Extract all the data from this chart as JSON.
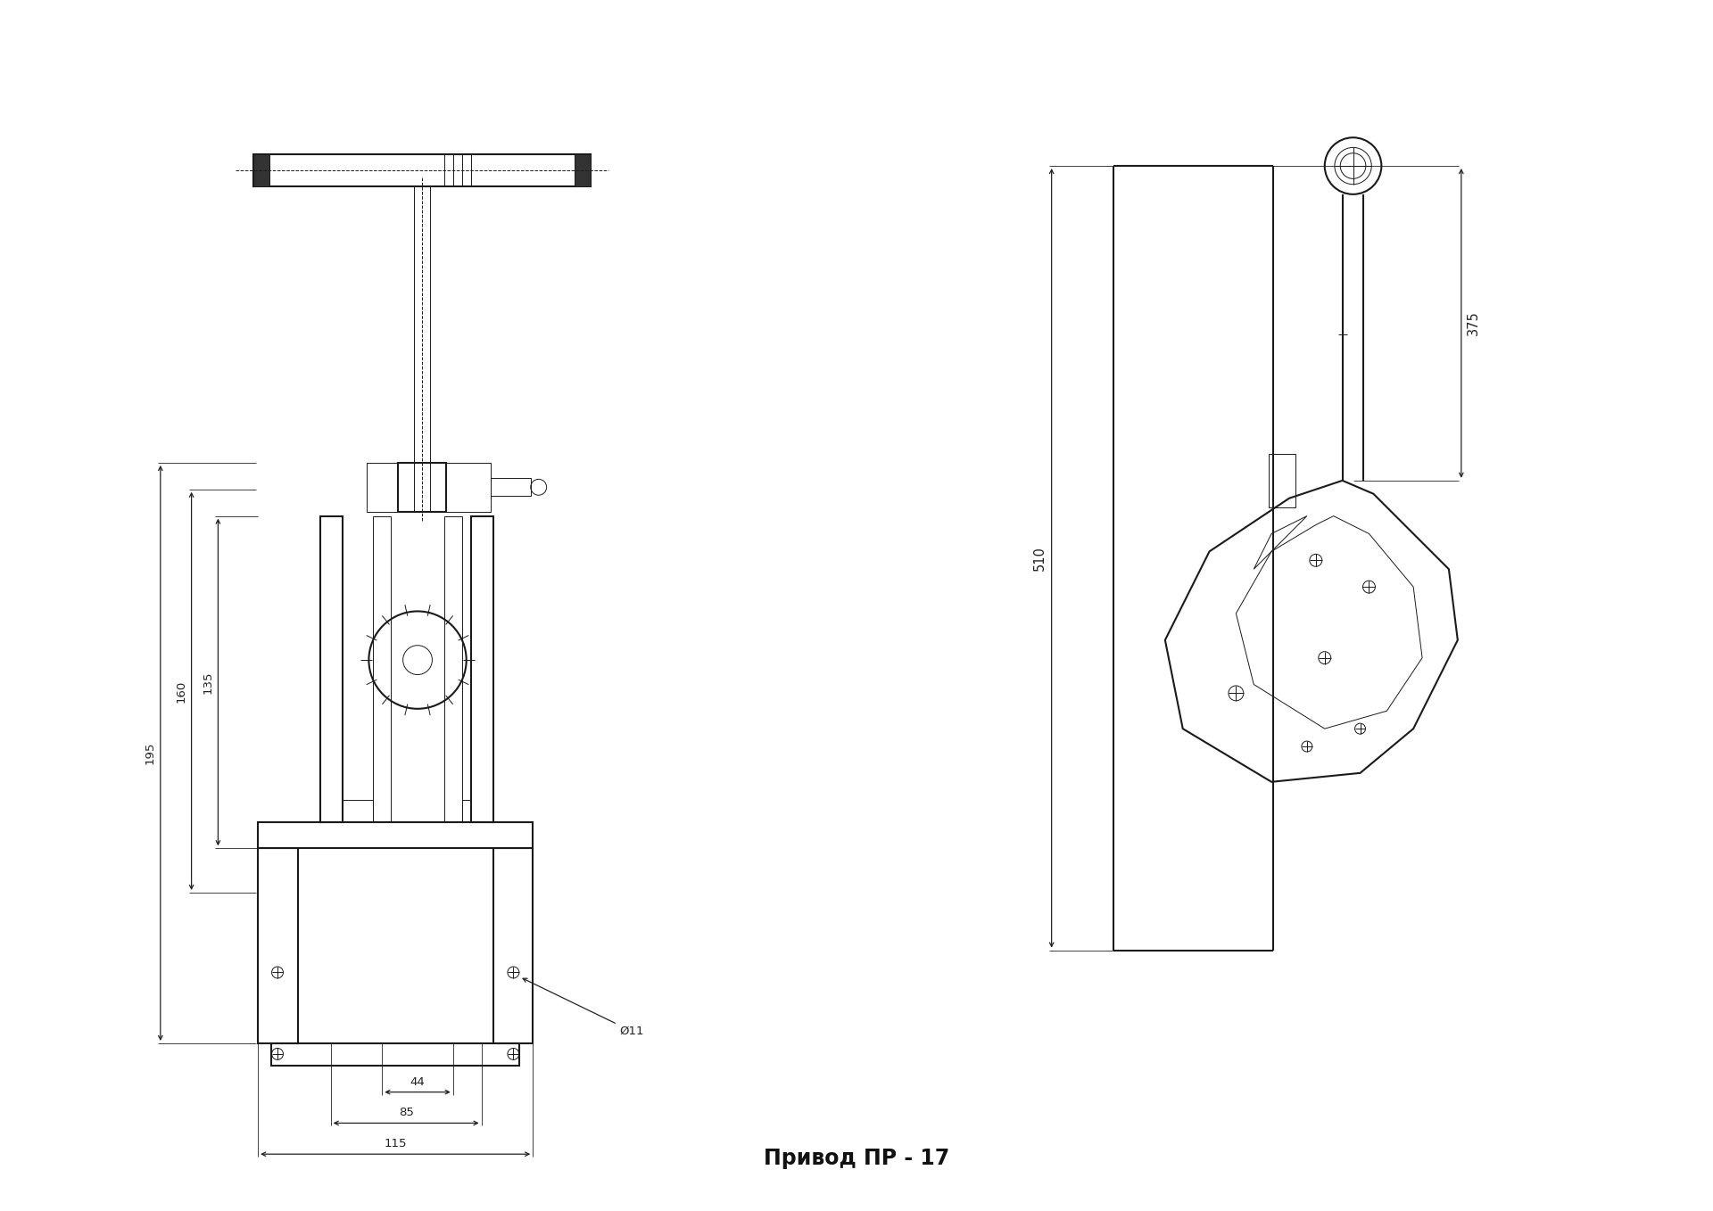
{
  "title": "Привод ПР - 17",
  "background_color": "#ffffff",
  "line_color": "#1a1a1a",
  "dim_color": "#222222",
  "fig_width": 19.2,
  "fig_height": 13.58,
  "lw_main": 1.5,
  "lw_thin": 0.7,
  "lw_dim": 0.8,
  "fontsize": 9.5,
  "title_fontsize": 17
}
